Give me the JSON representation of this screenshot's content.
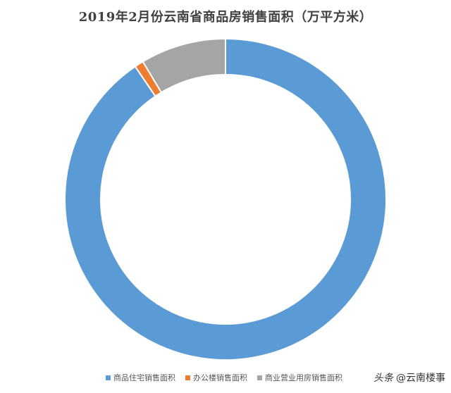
{
  "chart_data": {
    "type": "pie",
    "variant": "donut",
    "title": "2019年2月份云南省商品房销售面积（万平方米）",
    "categories": [
      "商品住宅销售面积",
      "办公楼销售面积",
      "商业营业用房销售面积"
    ],
    "values": [
      90.5,
      0.9,
      8.6
    ],
    "colors": [
      "#5B9BD5",
      "#ED7D31",
      "#A5A5A5"
    ],
    "legend_position": "bottom",
    "start_angle_deg": 0,
    "direction": "clockwise"
  },
  "watermark": {
    "brand": "头条",
    "handle": "@云南楼事"
  }
}
